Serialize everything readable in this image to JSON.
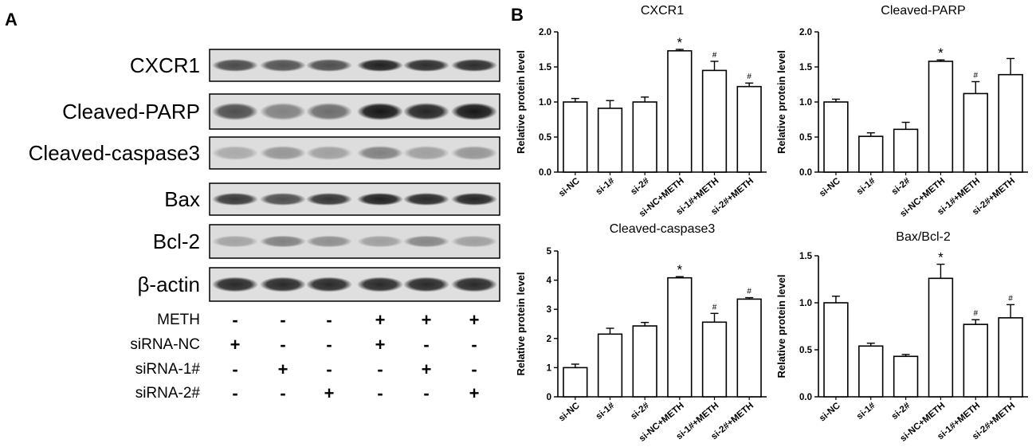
{
  "panels": {
    "a": "A",
    "b": "B"
  },
  "blot": {
    "rows": [
      "CXCR1",
      "Cleaved-PARP",
      "Cleaved-caspase3",
      "Bax",
      "Bcl-2",
      "β-actin"
    ],
    "treatments": [
      {
        "label": "METH",
        "signs": [
          "-",
          "-",
          "-",
          "+",
          "+",
          "+"
        ]
      },
      {
        "label": "siRNA-NC",
        "signs": [
          "+",
          "-",
          "-",
          "+",
          "-",
          "-"
        ]
      },
      {
        "label": "siRNA-1#",
        "signs": [
          "-",
          "+",
          "-",
          "-",
          "+",
          "-"
        ]
      },
      {
        "label": "siRNA-2#",
        "signs": [
          "-",
          "-",
          "+",
          "-",
          "-",
          "+"
        ]
      }
    ]
  },
  "chart_data": [
    {
      "type": "bar",
      "title": "CXCR1",
      "ylabel": "Relative protein level",
      "categories": [
        "si-NC",
        "si-1#",
        "si-2#",
        "si-NC+METH",
        "si-1#+METH",
        "si-2#+METH"
      ],
      "values": [
        1.0,
        0.91,
        1.0,
        1.73,
        1.45,
        1.22
      ],
      "errors": [
        0.05,
        0.11,
        0.07,
        0.02,
        0.13,
        0.05
      ],
      "annotations": [
        "",
        "",
        "",
        "*",
        "#",
        "#"
      ],
      "ylim": [
        0,
        2.0
      ],
      "yticks": [
        "0.0",
        "0.5",
        "1.0",
        "1.5",
        "2.0"
      ]
    },
    {
      "type": "bar",
      "title": "Cleaved-PARP",
      "ylabel": "Relative protein level",
      "categories": [
        "si-NC",
        "si-1#",
        "si-2#",
        "si-NC+METH",
        "si-1#+METH",
        "si-2#+METH"
      ],
      "values": [
        1.0,
        0.51,
        0.61,
        1.58,
        1.12,
        1.39
      ],
      "errors": [
        0.04,
        0.05,
        0.1,
        0.02,
        0.17,
        0.23
      ],
      "annotations": [
        "",
        "",
        "",
        "*",
        "#",
        ""
      ],
      "ylim": [
        0,
        2.0
      ],
      "yticks": [
        "0.0",
        "0.5",
        "1.0",
        "1.5",
        "2.0"
      ]
    },
    {
      "type": "bar",
      "title": "Cleaved-caspase3",
      "ylabel": "Relative protein level",
      "categories": [
        "si-NC",
        "si-1#",
        "si-2#",
        "si-NC+METH",
        "si-1#+METH",
        "si-2#+METH"
      ],
      "values": [
        1.0,
        2.15,
        2.43,
        4.08,
        2.56,
        3.35
      ],
      "errors": [
        0.12,
        0.2,
        0.12,
        0.04,
        0.3,
        0.05
      ],
      "annotations": [
        "",
        "",
        "",
        "*",
        "#",
        "#"
      ],
      "ylim": [
        0,
        5
      ],
      "yticks": [
        "0",
        "1",
        "2",
        "3",
        "4",
        "5"
      ]
    },
    {
      "type": "bar",
      "title": "Bax/Bcl-2",
      "ylabel": "Relative protein level",
      "categories": [
        "si-NC",
        "si-1#",
        "si-2#",
        "si-NC+METH",
        "si-1#+METH",
        "si-2#+METH"
      ],
      "values": [
        1.0,
        0.54,
        0.43,
        1.26,
        0.77,
        0.84
      ],
      "errors": [
        0.07,
        0.03,
        0.02,
        0.15,
        0.05,
        0.14
      ],
      "annotations": [
        "",
        "",
        "",
        "*",
        "#",
        "#"
      ],
      "ylim": [
        0,
        1.5
      ],
      "yticks": [
        "0.0",
        "0.5",
        "1.0",
        "1.5"
      ]
    }
  ]
}
